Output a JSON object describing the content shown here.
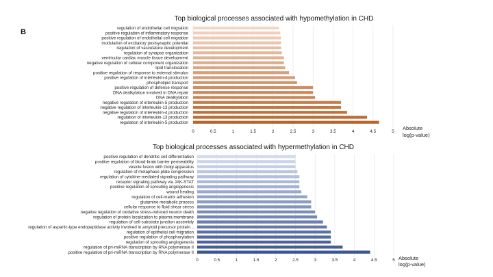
{
  "panel_label": "B",
  "chart_data": [
    {
      "type": "bar",
      "orientation": "horizontal",
      "title": "Top biological processes associated with hypomethylation in CHD",
      "xlabel": "Absolute log(p-value)",
      "xlabel_lines": [
        "Absolute",
        "log(p-value)"
      ],
      "xlim": [
        0,
        5
      ],
      "xticks": [
        "0",
        "0.5",
        "1",
        "1.5",
        "2",
        "2.5",
        "3",
        "3.5",
        "4",
        "4.5",
        "5"
      ],
      "grid": true,
      "legend": "none",
      "color_light": "#f3d6c4",
      "color_dark": "#b8652c",
      "categories": [
        "regulation of endothelial cell migration",
        "positive regulation of inflammatory response",
        "positive regulation of endothelial cell migration",
        "modulation of excitatory postsynaptic potential",
        "regulation of vasculature development",
        "regulation of synapse organization",
        "ventricular cardiac muscle tissue development",
        "negative regulation of cellular component organization",
        "lipid translocation",
        "positive regulation of response to external stimulus",
        "positive regulation of interleukin-4 production",
        "phospholipid transport",
        "positive regulation of defense response",
        "DNA dealkylation involved in DNA repair",
        "DNA dealkylation",
        "negative regulation of interleukin-5 production",
        "negative regulation of interleukin-13 production",
        "negative regulation of interleukin-4 production",
        "regulation of interleukin-13 production",
        "regulation of interleukin-5 production"
      ],
      "values": [
        2.15,
        2.18,
        2.2,
        2.2,
        2.2,
        2.22,
        2.27,
        2.27,
        2.3,
        2.4,
        2.55,
        2.6,
        3.0,
        3.0,
        3.05,
        3.7,
        3.7,
        3.85,
        4.35,
        4.65
      ]
    },
    {
      "type": "bar",
      "orientation": "horizontal",
      "title": "Top biological processes associated with hypermethylation in CHD",
      "xlabel": "Absolute log(p-value)",
      "xlabel_lines": [
        "Absolute",
        "log(p-value)"
      ],
      "xlim": [
        0,
        5
      ],
      "xticks": [
        "0",
        "0.5",
        "1",
        "1.5",
        "2",
        "2.5",
        "3",
        "3.5",
        "4",
        "4.5",
        "5"
      ],
      "grid": true,
      "legend": "none",
      "color_light": "#d3dbf0",
      "color_dark": "#3d5590",
      "categories": [
        "positive regulation of dendritic cell differentiation",
        "positive regulation of blood-brain barrier permeability",
        "vesicle fusion with Golgi apparatus",
        "regulation of metaphase plate congression",
        "regulation of cytokine-mediated signaling pathway",
        "receptor signaling pathway via JAK-STAT",
        "positive regulation of sprouting angiogenesis",
        "wound healing",
        "regulation of cell-matrix adhesion",
        "glutamine metabolic process",
        "cellular response to fluid shear stress",
        "negative regulation of oxidative stress-induced neuron death",
        "regulation of protein localization to plasma membrane",
        "regulation of cell-substrate junction assembly",
        "regulation of aspartic-type endopeptidase activity involved in amyloid precursor protein...",
        "regulation of epithelial cell migration",
        "positive regulation of phosphorylation",
        "regulation of sprouting angiogenesis",
        "regulation of pri-miRNA transcription by RNA polymerase II",
        "positive regulation of pri-miRNA transcription by RNA polymerase II"
      ],
      "values": [
        2.5,
        2.5,
        2.5,
        2.55,
        2.6,
        2.6,
        2.6,
        2.65,
        2.8,
        2.9,
        2.9,
        3.0,
        3.05,
        3.2,
        3.3,
        3.4,
        3.4,
        3.4,
        3.7,
        4.4
      ]
    }
  ]
}
